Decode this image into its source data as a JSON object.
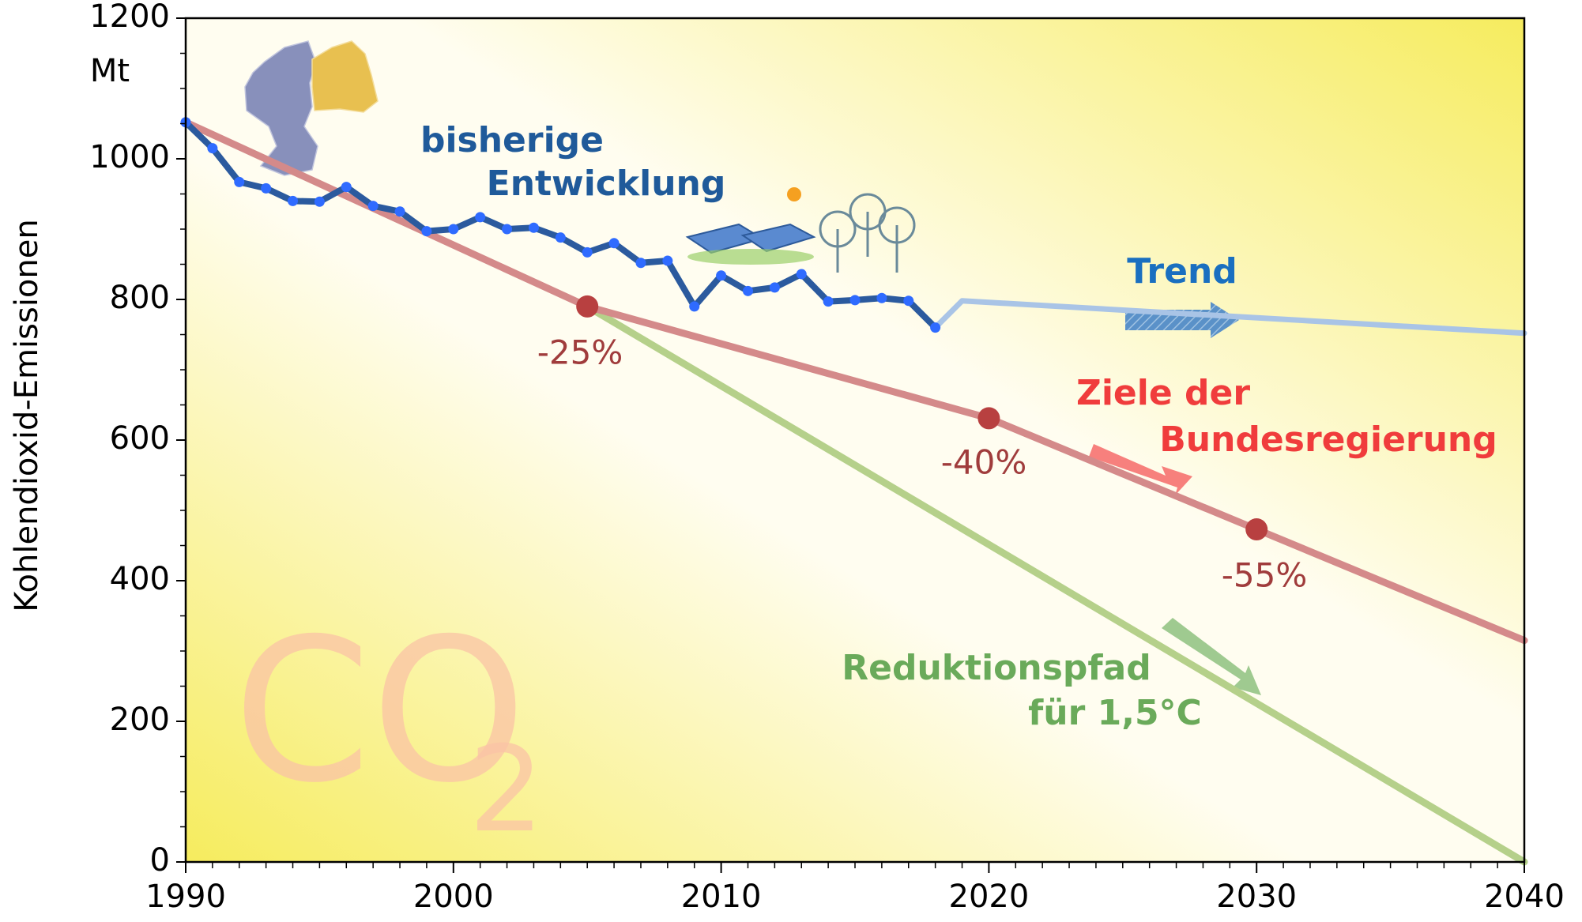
{
  "chart_data": {
    "type": "line",
    "y_label": "Kohlendioxid-Emissionen",
    "y_unit": "Mt",
    "watermark": [
      "CO",
      "2"
    ],
    "xlim": [
      1990,
      2040
    ],
    "xticks": [
      1990,
      2000,
      2010,
      2020,
      2030,
      2040
    ],
    "x_minor_ticks": [
      1991,
      1992,
      1993,
      1994,
      1995,
      1996,
      1997,
      1998,
      1999,
      2001,
      2002,
      2003,
      2004,
      2005,
      2006,
      2007,
      2008,
      2009,
      2011,
      2012,
      2013,
      2014,
      2015,
      2016,
      2017,
      2018,
      2019,
      2021,
      2022,
      2023,
      2024,
      2025,
      2026,
      2027,
      2028,
      2029,
      2031,
      2032,
      2033,
      2034,
      2035,
      2036,
      2037,
      2038,
      2039
    ],
    "ylim": [
      0,
      1200
    ],
    "yticks": [
      0,
      200,
      400,
      600,
      800,
      1000,
      1200
    ],
    "y_minor_ticks": [
      50,
      100,
      150,
      250,
      300,
      350,
      450,
      500,
      550,
      650,
      700,
      750,
      850,
      900,
      950,
      1050,
      1100,
      1150
    ],
    "series": [
      {
        "label": [
          "bisherige",
          "Entwicklung"
        ],
        "color": "#2b5a9e",
        "marker_color": "#2f6bff",
        "label_color": "#1f5a9a",
        "width": 8,
        "x": [
          1990,
          1991,
          1992,
          1993,
          1994,
          1995,
          1996,
          1997,
          1998,
          1999,
          2000,
          2001,
          2002,
          2003,
          2004,
          2005,
          2006,
          2007,
          2008,
          2009,
          2010,
          2011,
          2012,
          2013,
          2014,
          2015,
          2016,
          2017,
          2018
        ],
        "values": [
          1052,
          1015,
          967,
          958,
          940,
          939,
          960,
          933,
          925,
          897,
          900,
          917,
          900,
          902,
          888,
          867,
          880,
          852,
          855,
          790,
          834,
          812,
          817,
          836,
          797,
          799,
          802,
          798,
          760
        ]
      },
      {
        "label": [
          "Trend"
        ],
        "color": "#a9c4e6",
        "label_color": "#1a6fc0",
        "width": 7,
        "x": [
          2018,
          2019,
          2040
        ],
        "values": [
          760,
          798,
          752
        ]
      },
      {
        "label": [
          "Ziele der",
          "Bundesregierung"
        ],
        "color": "#d48a8a",
        "label_color": "#f03c3c",
        "width": 9,
        "x": [
          1990,
          2005,
          2020,
          2030,
          2040
        ],
        "values": [
          1052,
          790,
          631,
          473,
          315
        ]
      },
      {
        "label": [
          "Reduktionspfad",
          "für 1,5°C"
        ],
        "color": "#b5d08a",
        "label_color": "#6aaa5a",
        "width": 9,
        "x": [
          2005,
          2040
        ],
        "values": [
          790,
          0
        ]
      }
    ],
    "targets": [
      {
        "x": 2005,
        "value": 790,
        "label": "-25%"
      },
      {
        "x": 2020,
        "value": 631,
        "label": "-40%"
      },
      {
        "x": 2030,
        "value": 473,
        "label": "-55%"
      }
    ],
    "target_color": "#b84040"
  }
}
